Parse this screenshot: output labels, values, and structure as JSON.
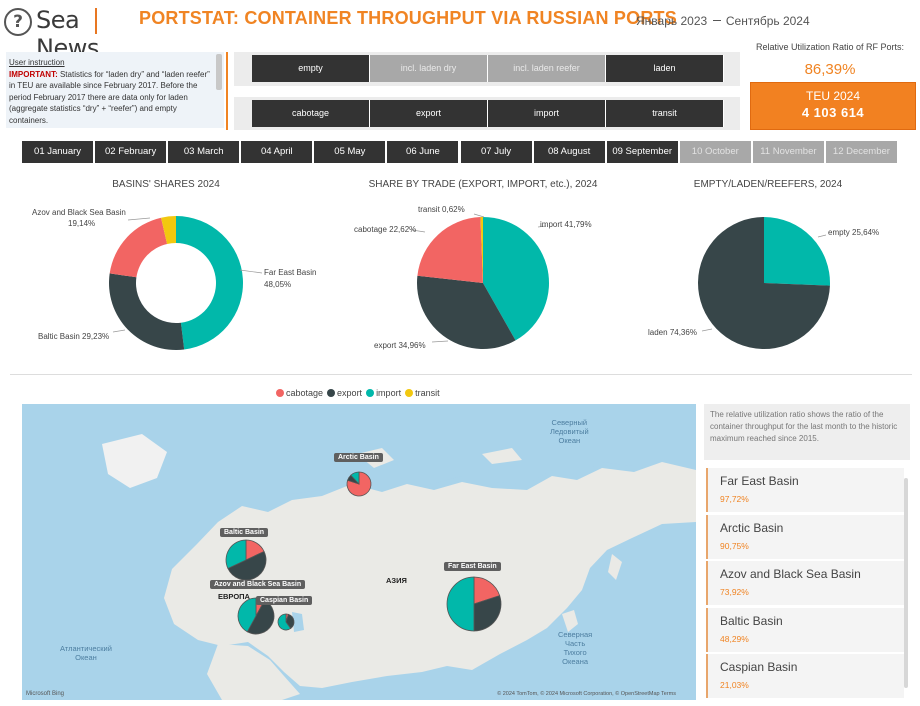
{
  "header": {
    "logo_left": "Sea",
    "logo_right": "News",
    "title": "PORTSTAT: CONTAINER THROUGHPUT VIA RUSSIAN PORTS",
    "date_from": "Январь 2023",
    "date_to": "Сентябрь 2024"
  },
  "instruction": {
    "title": "User instruction",
    "important": "IMPORTANT:",
    "text": " Statistics for “laden dry” and “laden reefer” in TEU are available since February 2017. Before the period February 2017 there are data only for laden (aggregate statistics “dry” + “reefer”) and empty containers."
  },
  "slicer_cargo": [
    {
      "label": "empty",
      "active": true
    },
    {
      "label": "incl. laden dry",
      "active": false
    },
    {
      "label": "incl. laden reefer",
      "active": false
    },
    {
      "label": "laden",
      "active": true
    }
  ],
  "slicer_trade": [
    {
      "label": "cabotage",
      "active": true
    },
    {
      "label": "export",
      "active": true
    },
    {
      "label": "import",
      "active": true
    },
    {
      "label": "transit",
      "active": true
    }
  ],
  "months": [
    {
      "label": "01 January",
      "active": true
    },
    {
      "label": "02 February",
      "active": true
    },
    {
      "label": "03 March",
      "active": true
    },
    {
      "label": "04 April",
      "active": true
    },
    {
      "label": "05 May",
      "active": true
    },
    {
      "label": "06 June",
      "active": true
    },
    {
      "label": "07 July",
      "active": true
    },
    {
      "label": "08 August",
      "active": true
    },
    {
      "label": "09 September",
      "active": true
    },
    {
      "label": "10 October",
      "active": false
    },
    {
      "label": "11 November",
      "active": false
    },
    {
      "label": "12 December",
      "active": false
    }
  ],
  "kpi": {
    "label": "Relative Utilization Ratio of RF Ports:",
    "ratio": "86,39%",
    "teu_label": "TEU 2024",
    "teu_value": "4 103 614"
  },
  "colors": {
    "accent": "#f08423",
    "cabotage": "#f26563",
    "export": "#374649",
    "import": "#01b8aa",
    "transit": "#f2c80f"
  },
  "chart_data": [
    {
      "type": "pie",
      "title": "BASINS' SHARES 2024",
      "donut": true,
      "slices": [
        {
          "name": "Far East Basin",
          "label": "Far East Basin",
          "value_label": "48,05%",
          "value": 48.05,
          "color": "#01b8aa"
        },
        {
          "name": "Baltic Basin",
          "label": "Baltic Basin",
          "value_label": "29,23%",
          "value": 29.23,
          "color": "#374649"
        },
        {
          "name": "Azov and Black Sea Basin",
          "label": "Azov and Black Sea Basin",
          "value_label": "19,14%",
          "value": 19.14,
          "color": "#f26563"
        },
        {
          "name": "Caspian Basin",
          "label": "",
          "value_label": "",
          "value": 3.58,
          "color": "#f2c80f"
        }
      ]
    },
    {
      "type": "pie",
      "title": "SHARE BY TRADE (EXPORT, IMPORT, etc.), 2024",
      "donut": false,
      "slices": [
        {
          "name": "import",
          "label": "import",
          "value_label": "41,79%",
          "value": 41.79,
          "color": "#01b8aa"
        },
        {
          "name": "export",
          "label": "export",
          "value_label": "34,96%",
          "value": 34.96,
          "color": "#374649"
        },
        {
          "name": "cabotage",
          "label": "cabotage",
          "value_label": "22,62%",
          "value": 22.62,
          "color": "#f26563"
        },
        {
          "name": "transit",
          "label": "transit",
          "value_label": "0,62%",
          "value": 0.62,
          "color": "#f2c80f"
        }
      ]
    },
    {
      "type": "pie",
      "title": "EMPTY/LADEN/REEFERS, 2024",
      "donut": false,
      "slices": [
        {
          "name": "empty",
          "label": "empty",
          "value_label": "25,64%",
          "value": 25.64,
          "color": "#01b8aa"
        },
        {
          "name": "laden",
          "label": "laden",
          "value_label": "74,36%",
          "value": 74.36,
          "color": "#374649"
        }
      ]
    }
  ],
  "map": {
    "legend": [
      {
        "name": "cabotage",
        "color": "#f26563"
      },
      {
        "name": "export",
        "color": "#374649"
      },
      {
        "name": "import",
        "color": "#01b8aa"
      },
      {
        "name": "transit",
        "color": "#f2c80f"
      }
    ],
    "basins": [
      {
        "name": "Arctic Basin",
        "shares": [
          80,
          8,
          12,
          0
        ]
      },
      {
        "name": "Baltic Basin",
        "shares": [
          18,
          50,
          32,
          0
        ]
      },
      {
        "name": "Azov and Black Sea Basin",
        "shares": [
          8,
          50,
          42,
          0
        ]
      },
      {
        "name": "Caspian Basin",
        "shares": [
          5,
          35,
          60,
          0
        ]
      },
      {
        "name": "Far East Basin",
        "shares": [
          20,
          30,
          50,
          0
        ]
      }
    ],
    "sea_arctic": "Северный\nЛедовитый\nОкеан",
    "sea_atlantic": "Атлантический\nОкеан",
    "sea_pacific": "Северная\nЧасть\nТихого\nОкеана",
    "land_europe": "ЕВРОПА",
    "land_asia": "АЗИЯ",
    "copyright": "© 2024 TomTom, © 2024 Microsoft Corporation, © OpenStreetMap  Terms",
    "bing": "Microsoft Bing"
  },
  "right_panel": {
    "note": "The relative utilization ratio shows the ratio of the container throughput for the last month to the historic maximum reached since 2015.",
    "items": [
      {
        "name": "Far East Basin",
        "value": "97,72%"
      },
      {
        "name": "Arctic Basin",
        "value": "90,75%"
      },
      {
        "name": "Azov and Black Sea Basin",
        "value": "73,92%"
      },
      {
        "name": "Baltic Basin",
        "value": "48,29%"
      },
      {
        "name": "Caspian Basin",
        "value": "21,03%"
      }
    ]
  }
}
